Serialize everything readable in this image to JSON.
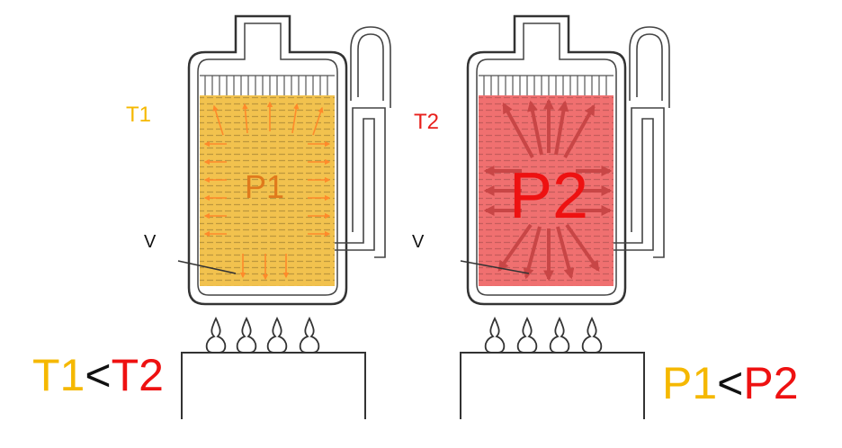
{
  "left_vessel": {
    "temp_label": "T1",
    "pressure_label": "P1",
    "volume_label": "V",
    "fill_color": "#f2c24e",
    "arrow_color": "#ff8a2a",
    "temp_color": "#f5b800",
    "pressure_color": "#e07a1c"
  },
  "right_vessel": {
    "temp_label": "T2",
    "pressure_label": "P2",
    "volume_label": "V",
    "fill_color": "#f07070",
    "arrow_color": "#c84646",
    "temp_color": "#e8201c",
    "pressure_color": "#ee1111"
  },
  "comparison_left": {
    "a": "T1",
    "op": "<",
    "b": "T2"
  },
  "comparison_right": {
    "a": "P1",
    "op": "<",
    "b": "P2"
  },
  "colors": {
    "yellow": "#f5b800",
    "red": "#ee1111",
    "black": "#111111",
    "outline": "#333333"
  }
}
